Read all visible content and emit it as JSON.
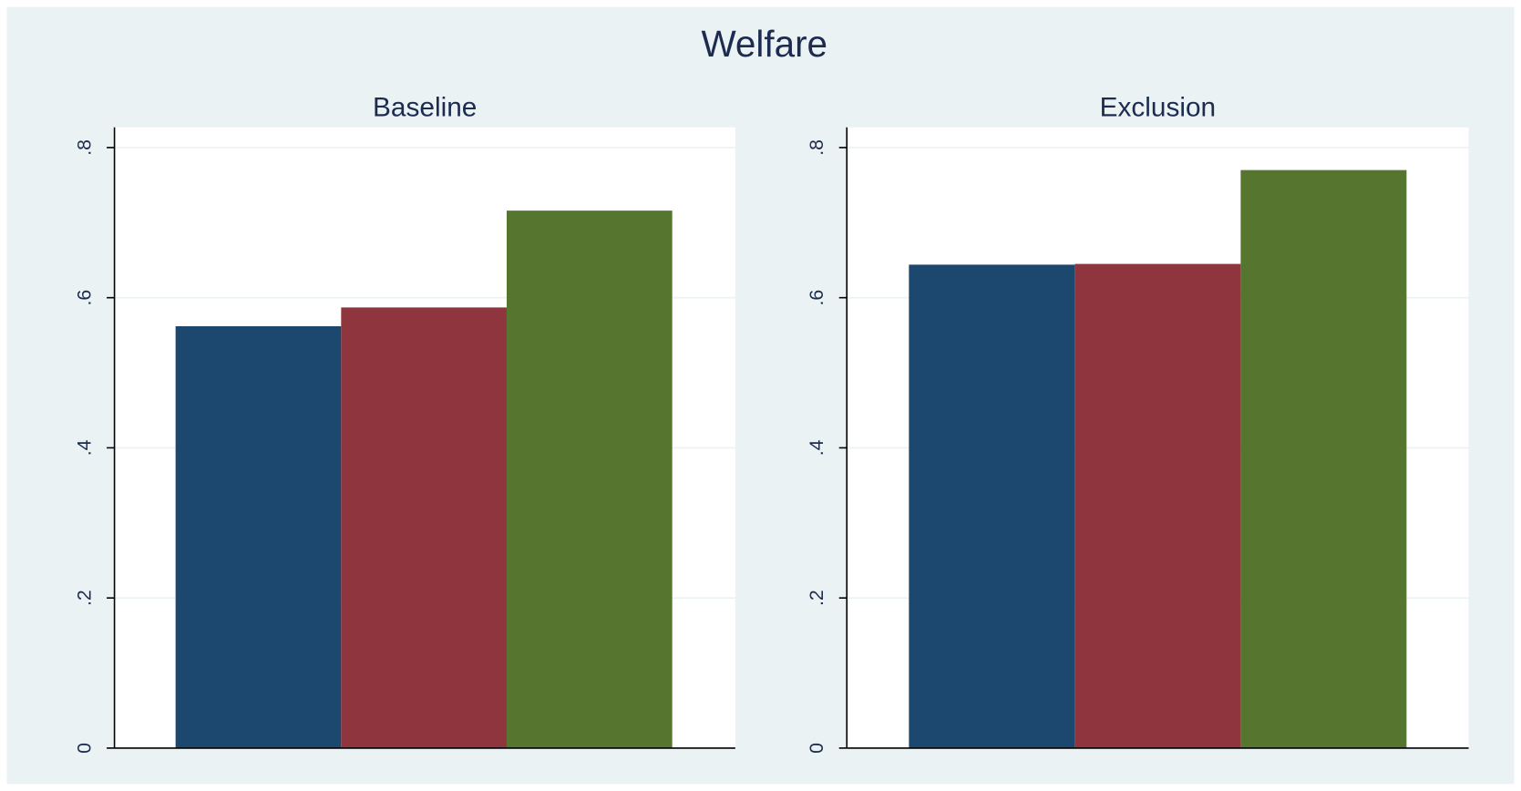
{
  "title": "Welfare",
  "chart_data": [
    {
      "type": "bar",
      "title": "Baseline",
      "series": [
        {
          "color": "#1c4870",
          "values": [
            0.562
          ]
        },
        {
          "color": "#8f353d",
          "values": [
            0.587
          ]
        },
        {
          "color": "#56752f",
          "values": [
            0.716
          ]
        }
      ],
      "ylim": [
        0,
        0.827
      ],
      "yticks": [
        0,
        {
          "value": 0.2,
          "label": ".2"
        },
        {
          "value": 0.4,
          "label": ".4"
        },
        {
          "value": 0.6,
          "label": ".6"
        },
        {
          "value": 0.8,
          "label": ".8"
        }
      ],
      "grid": true
    },
    {
      "type": "bar",
      "title": "Exclusion",
      "series": [
        {
          "color": "#1c4870",
          "values": [
            0.644
          ]
        },
        {
          "color": "#8f353d",
          "values": [
            0.645
          ]
        },
        {
          "color": "#56752f",
          "values": [
            0.77
          ]
        }
      ],
      "ylim": [
        0,
        0.827
      ],
      "yticks": [
        0,
        {
          "value": 0.2,
          "label": ".2"
        },
        {
          "value": 0.4,
          "label": ".4"
        },
        {
          "value": 0.6,
          "label": ".6"
        },
        {
          "value": 0.8,
          "label": ".8"
        }
      ],
      "grid": true
    }
  ]
}
